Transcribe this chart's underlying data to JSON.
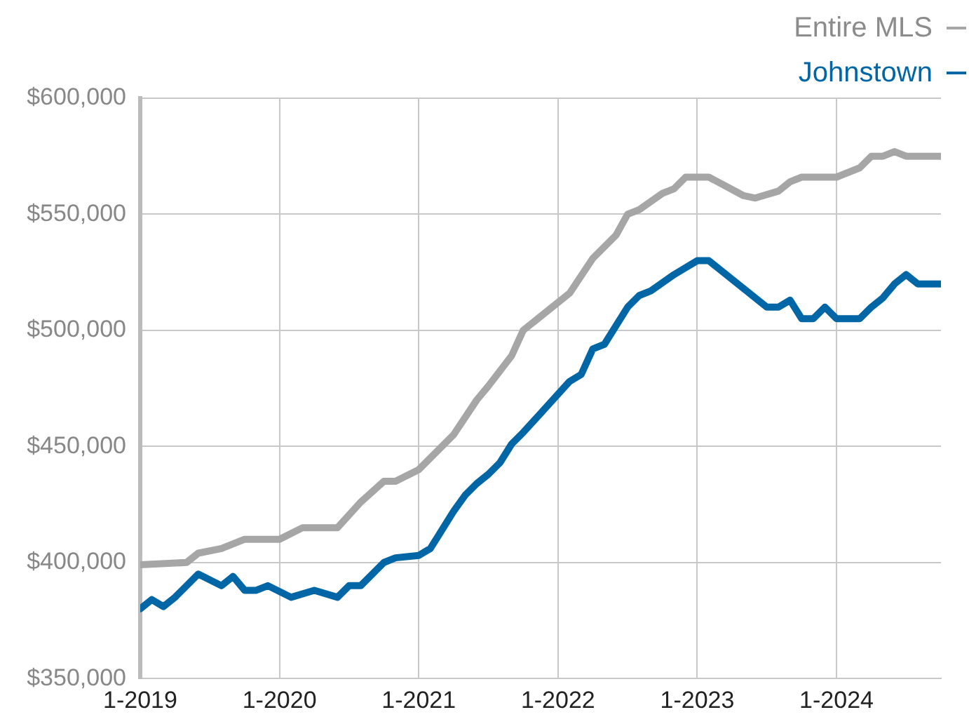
{
  "chart_data": {
    "type": "line",
    "legend": "top right",
    "grid": true,
    "marker": "none",
    "line_style": "solid",
    "xlim": [
      "2019-01",
      "2024-10"
    ],
    "xticks": [
      {
        "value": "2019-01",
        "label": "1-2019"
      },
      {
        "value": "2020-01",
        "label": "1-2020"
      },
      {
        "value": "2021-01",
        "label": "1-2021"
      },
      {
        "value": "2022-01",
        "label": "1-2022"
      },
      {
        "value": "2023-01",
        "label": "1-2023"
      },
      {
        "value": "2024-01",
        "label": "1-2024"
      }
    ],
    "ylim": [
      350000,
      600000
    ],
    "yticks": [
      {
        "value": 350000,
        "label": "$350,000"
      },
      {
        "value": 400000,
        "label": "$400,000"
      },
      {
        "value": 450000,
        "label": "$450,000"
      },
      {
        "value": 500000,
        "label": "$500,000"
      },
      {
        "value": 550000,
        "label": "$550,000"
      },
      {
        "value": 600000,
        "label": "$600,000"
      }
    ],
    "series": [
      {
        "name": "Entire MLS",
        "color": "#a6a6a6",
        "x": [
          "2019-01",
          "2019-05",
          "2019-06",
          "2019-08",
          "2019-10",
          "2020-01",
          "2020-03",
          "2020-06",
          "2020-08",
          "2020-10",
          "2020-11",
          "2021-01",
          "2021-04",
          "2021-06",
          "2021-07",
          "2021-09",
          "2021-10",
          "2022-02",
          "2022-04",
          "2022-06",
          "2022-07",
          "2022-08",
          "2022-10",
          "2022-11",
          "2022-12",
          "2023-02",
          "2023-05",
          "2023-06",
          "2023-08",
          "2023-09",
          "2023-10",
          "2024-01",
          "2024-03",
          "2024-04",
          "2024-05",
          "2024-06",
          "2024-07",
          "2024-10"
        ],
        "values": [
          399000,
          400000,
          404000,
          406000,
          410000,
          410000,
          415000,
          415000,
          426000,
          435000,
          435000,
          440000,
          455000,
          470000,
          476000,
          489000,
          500000,
          516000,
          531000,
          541000,
          550000,
          552000,
          559000,
          561000,
          566000,
          566000,
          558000,
          557000,
          560000,
          564000,
          566000,
          566000,
          570000,
          575000,
          575000,
          577000,
          575000,
          575000
        ]
      },
      {
        "name": "Johnstown",
        "color": "#0066a6",
        "x": [
          "2019-01",
          "2019-02",
          "2019-03",
          "2019-04",
          "2019-06",
          "2019-08",
          "2019-09",
          "2019-10",
          "2019-11",
          "2019-12",
          "2020-02",
          "2020-04",
          "2020-06",
          "2020-07",
          "2020-08",
          "2020-10",
          "2020-11",
          "2021-01",
          "2021-02",
          "2021-04",
          "2021-05",
          "2021-06",
          "2021-07",
          "2021-08",
          "2021-09",
          "2021-10",
          "2021-12",
          "2022-02",
          "2022-03",
          "2022-04",
          "2022-05",
          "2022-07",
          "2022-08",
          "2022-09",
          "2022-11",
          "2022-12",
          "2023-01",
          "2023-02",
          "2023-05",
          "2023-07",
          "2023-08",
          "2023-09",
          "2023-10",
          "2023-11",
          "2023-12",
          "2024-01",
          "2024-03",
          "2024-04",
          "2024-05",
          "2024-06",
          "2024-07",
          "2024-08",
          "2024-10"
        ],
        "values": [
          380000,
          384000,
          381000,
          385000,
          395000,
          390000,
          394000,
          388000,
          388000,
          390000,
          385000,
          388000,
          385000,
          390000,
          390000,
          400000,
          402000,
          403000,
          406000,
          422000,
          429000,
          434000,
          438000,
          443000,
          451000,
          456000,
          467000,
          478000,
          481000,
          492000,
          494000,
          510000,
          515000,
          517000,
          524000,
          527000,
          530000,
          530000,
          518000,
          510000,
          510000,
          513000,
          505000,
          505000,
          510000,
          505000,
          505000,
          510000,
          514000,
          520000,
          524000,
          520000,
          520000
        ]
      }
    ]
  }
}
